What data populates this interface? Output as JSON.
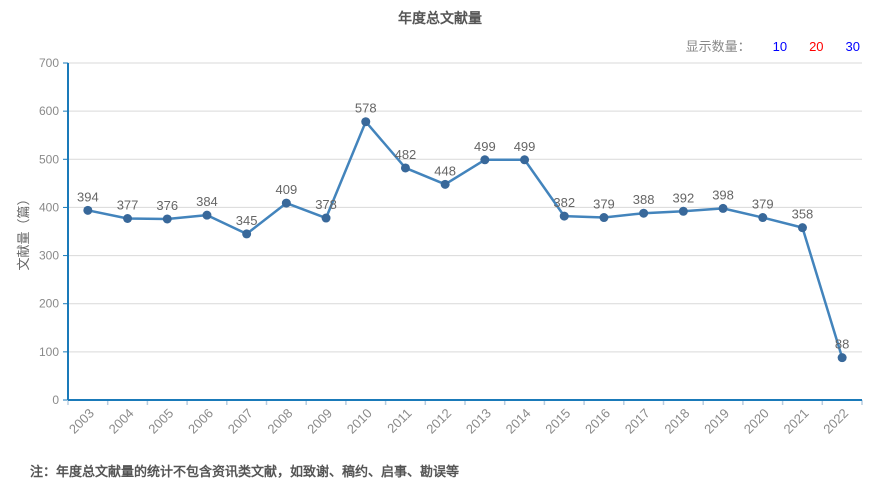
{
  "title": "年度总文献量",
  "display_count": {
    "label": "显示数量：",
    "options": [
      {
        "value": "10",
        "selected": false
      },
      {
        "value": "20",
        "selected": true
      },
      {
        "value": "30",
        "selected": false
      }
    ],
    "link_color": "#0000ff",
    "selected_color": "#ff0000"
  },
  "footnote": "注：年度总文献量的统计不包含资讯类文献，如致谢、稿约、启事、勘误等",
  "chart_data": {
    "type": "line",
    "title": "年度总文献量",
    "categories": [
      "2003",
      "2004",
      "2005",
      "2006",
      "2007",
      "2008",
      "2009",
      "2010",
      "2011",
      "2012",
      "2013",
      "2014",
      "2015",
      "2016",
      "2017",
      "2018",
      "2019",
      "2020",
      "2021",
      "2022"
    ],
    "values": [
      394,
      377,
      376,
      384,
      345,
      409,
      378,
      578,
      482,
      448,
      499,
      499,
      382,
      379,
      388,
      392,
      398,
      379,
      358,
      88
    ],
    "xlabel": "",
    "ylabel": "文献量（篇）",
    "ylim": [
      0,
      700
    ],
    "ytick_interval": 100,
    "grid": true,
    "legend_position": "none",
    "line_color": "#4384bc",
    "marker_color": "#38689a",
    "axis_color": "#1a7ab9",
    "minor_tick_color": "#b9cde0",
    "grid_color": "#d9d9d9",
    "tick_label_color": "#8a8a8a",
    "value_label_color": "#666666"
  }
}
